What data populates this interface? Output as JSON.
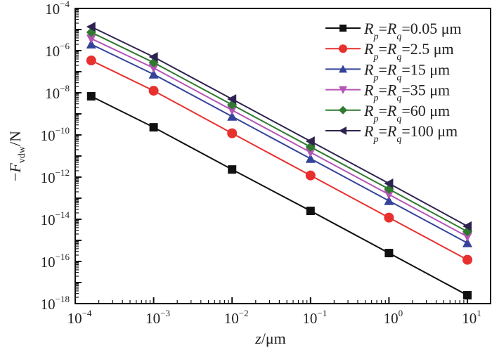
{
  "chart_data": {
    "type": "line",
    "xscale": "log",
    "yscale": "log",
    "xlim": [
      0.0001,
      20
    ],
    "ylim": [
      1e-18,
      0.0001
    ],
    "xlabel": {
      "italic": "z",
      "rest": "/μm"
    },
    "ylabel": {
      "prefix": "−",
      "italic": "F",
      "sub": "vdw",
      "rest": "/N"
    },
    "x_ticks": [
      {
        "value": 0.0001,
        "base": "10",
        "exp": "-4"
      },
      {
        "value": 0.001,
        "base": "10",
        "exp": "-3"
      },
      {
        "value": 0.01,
        "base": "10",
        "exp": "-2"
      },
      {
        "value": 0.1,
        "base": "10",
        "exp": "-1"
      },
      {
        "value": 1,
        "base": "10",
        "exp": "0"
      },
      {
        "value": 10,
        "base": "10",
        "exp": "1"
      }
    ],
    "y_ticks": [
      {
        "value": 0.0001,
        "base": "10",
        "exp": "-4"
      },
      {
        "value": 1e-06,
        "base": "10",
        "exp": "-6"
      },
      {
        "value": 1e-08,
        "base": "10",
        "exp": "-8"
      },
      {
        "value": 1e-10,
        "base": "10",
        "exp": "-10"
      },
      {
        "value": 1e-12,
        "base": "10",
        "exp": "-12"
      },
      {
        "value": 1e-14,
        "base": "10",
        "exp": "-14"
      },
      {
        "value": 1e-16,
        "base": "10",
        "exp": "-16"
      },
      {
        "value": 1e-18,
        "base": "10",
        "exp": "-18"
      }
    ],
    "x": [
      0.00016,
      0.001,
      0.01,
      0.1,
      1,
      10
    ],
    "series": [
      {
        "name": "R_p=R_q=0.05 μm",
        "label_value": "=0.05 μm",
        "color": "#111111",
        "marker": "square",
        "values": [
          6.8e-09,
          2.3e-10,
          2.3e-12,
          2.5e-14,
          2.5e-16,
          2.5e-18
        ]
      },
      {
        "name": "R_p=R_q=2.5 μm",
        "label_value": "=2.5 μm",
        "color": "#e8302e",
        "marker": "circle",
        "values": [
          3.4e-07,
          1.25e-08,
          1.2e-10,
          1.2e-12,
          1.2e-14,
          1.2e-16
        ]
      },
      {
        "name": "R_p=R_q=15 μm",
        "label_value": "=15 μm",
        "color": "#34439a",
        "marker": "triangle-up",
        "values": [
          2e-06,
          7.5e-08,
          7.5e-10,
          7.5e-12,
          7.5e-14,
          7.5e-16
        ]
      },
      {
        "name": "R_p=R_q=35 μm",
        "label_value": "=35 μm",
        "color": "#b455b6",
        "marker": "triangle-down",
        "values": [
          3.7e-06,
          1.5e-07,
          1.5e-09,
          1.5e-11,
          1.5e-13,
          1.5e-15
        ]
      },
      {
        "name": "R_p=R_q=60 μm",
        "label_value": "=60 μm",
        "color": "#2f7a2f",
        "marker": "diamond",
        "values": [
          7.4e-06,
          2.7e-07,
          2.7e-09,
          2.7e-11,
          2.7e-13,
          2.6e-15
        ]
      },
      {
        "name": "R_p=R_q=100 μm",
        "label_value": "=100 μm",
        "color": "#2e2350",
        "marker": "triangle-left",
        "values": [
          1.35e-05,
          5e-07,
          5e-09,
          5e-11,
          5e-13,
          4.7e-15
        ]
      }
    ],
    "legend": {
      "placement": "top-right",
      "symbol_R": "R",
      "sub_p": "p",
      "sub_q": "q",
      "eq": "="
    },
    "grid": false
  }
}
